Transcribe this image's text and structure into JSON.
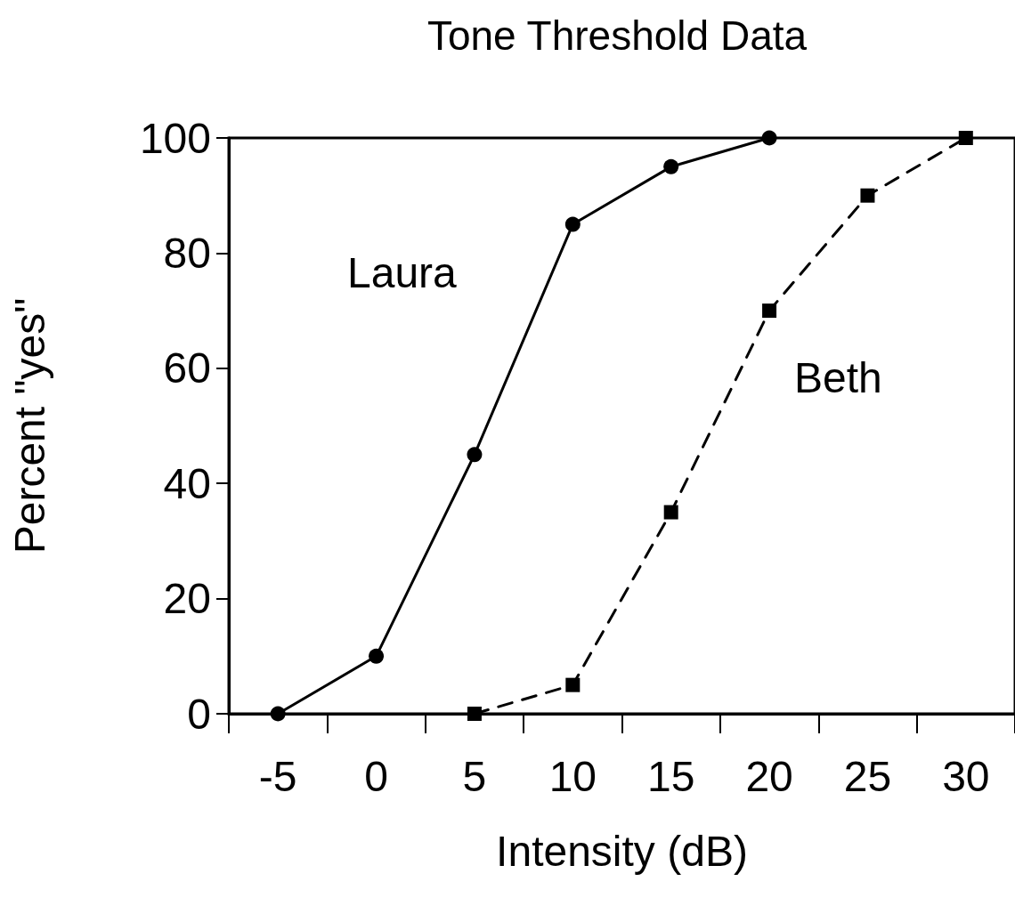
{
  "chart_data": {
    "type": "line",
    "title": "Tone Threshold Data",
    "xlabel": "Intensity (dB)",
    "ylabel": "Percent \"yes\"",
    "categories": [
      "-5",
      "0",
      "5",
      "10",
      "15",
      "20",
      "25",
      "30"
    ],
    "series": [
      {
        "name": "Laura",
        "color": "#000000",
        "marker": "circle",
        "line_style": "solid",
        "values": [
          0,
          10,
          45,
          85,
          95,
          100,
          null,
          null
        ]
      },
      {
        "name": "Beth",
        "color": "#000000",
        "marker": "square",
        "line_style": "dashed",
        "values": [
          null,
          null,
          0,
          5,
          35,
          70,
          90,
          100
        ]
      }
    ],
    "ylim": [
      0,
      100
    ],
    "yticks": [
      0,
      20,
      40,
      60,
      80,
      100
    ],
    "grid": false,
    "legend": false
  }
}
